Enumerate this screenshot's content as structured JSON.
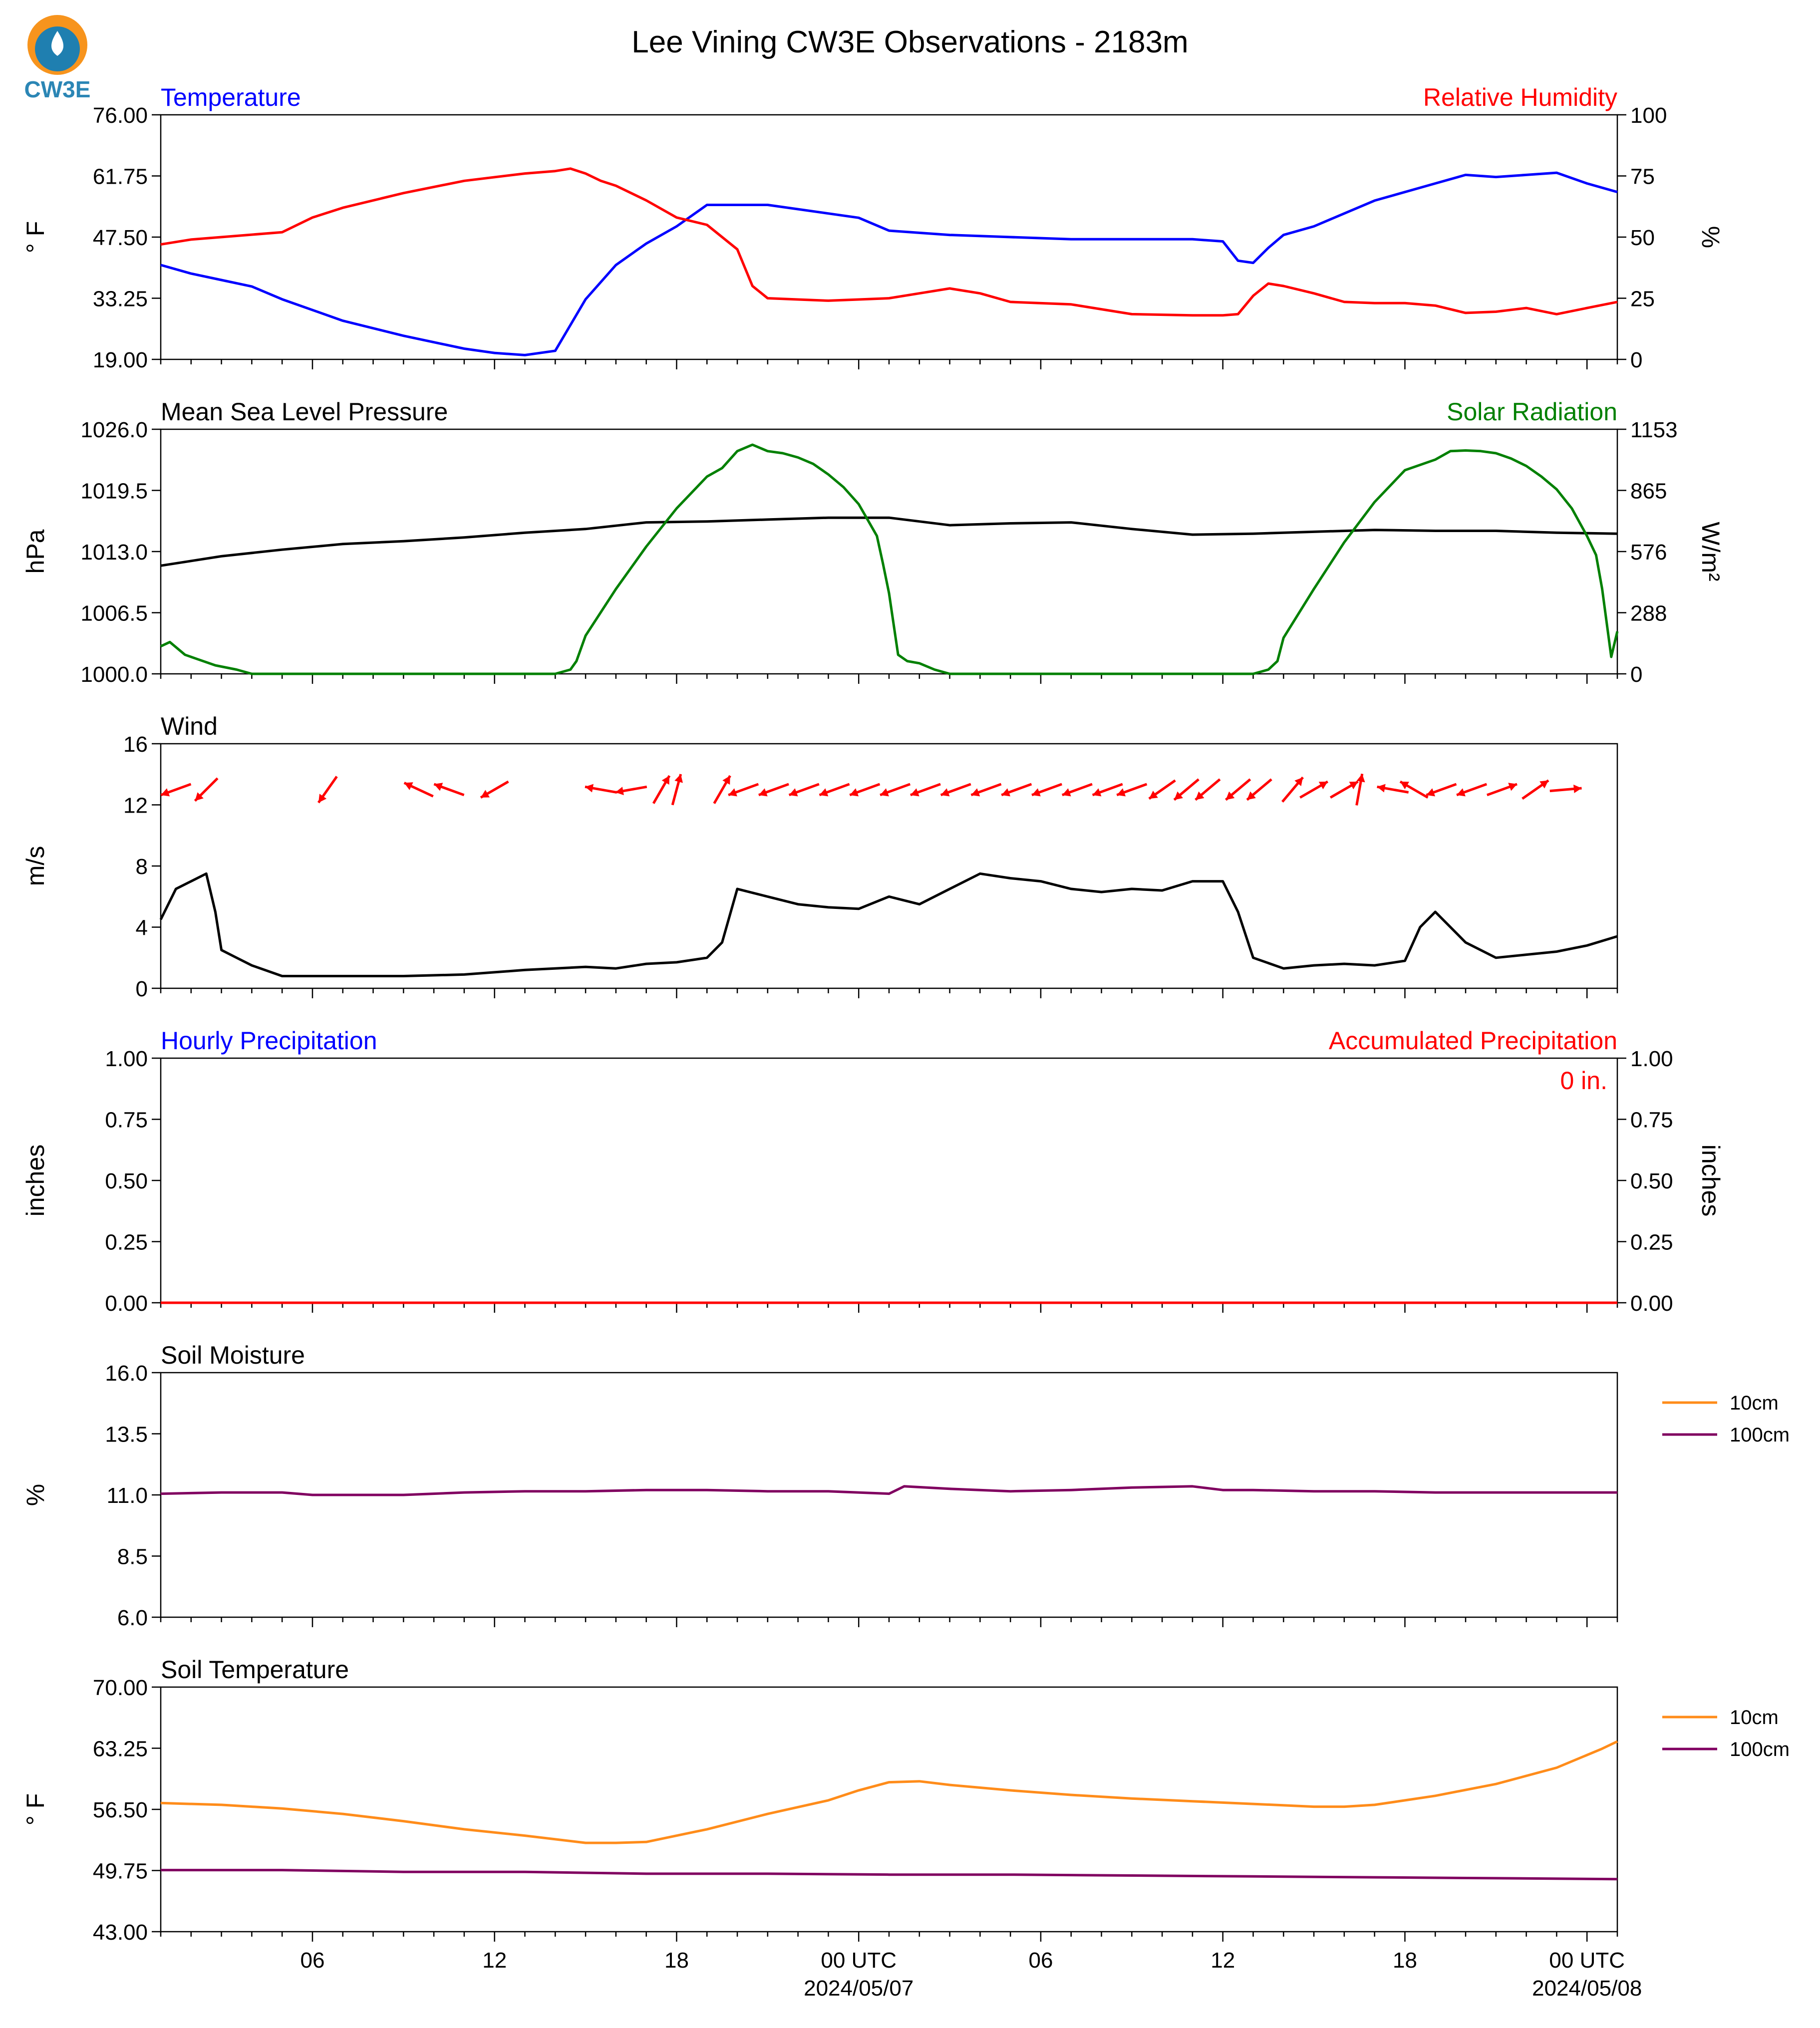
{
  "figure": {
    "title": "Lee Vining CW3E Observations - 2183m",
    "logo_text": "CW3E",
    "x_axis": {
      "hours_start": 0,
      "hours_end": 48,
      "ticks": [
        {
          "h": 5,
          "label": "06",
          "sub": ""
        },
        {
          "h": 11,
          "label": "12",
          "sub": ""
        },
        {
          "h": 17,
          "label": "18",
          "sub": ""
        },
        {
          "h": 23,
          "label": "00 UTC",
          "sub": "2024/05/07"
        },
        {
          "h": 29,
          "label": "06",
          "sub": ""
        },
        {
          "h": 35,
          "label": "12",
          "sub": ""
        },
        {
          "h": 41,
          "label": "18",
          "sub": ""
        },
        {
          "h": 47,
          "label": "00 UTC",
          "sub": "2024/05/08"
        }
      ]
    }
  },
  "panels": [
    {
      "id": "temperature",
      "left_title": "Temperature",
      "left_title_color": "#0000ff",
      "right_title": "Relative Humidity",
      "right_title_color": "#ff0000",
      "ylabel": "° F",
      "ylabel_right": "%",
      "yticks": [
        "76.00",
        "61.75",
        "47.50",
        "33.25",
        "19.00"
      ],
      "yticks_right": [
        "100",
        "75",
        "50",
        "25",
        "0"
      ]
    },
    {
      "id": "pressure",
      "left_title": "Mean Sea Level Pressure",
      "left_title_color": "#000000",
      "right_title": "Solar Radiation",
      "right_title_color": "#008000",
      "ylabel": "hPa",
      "ylabel_right": "W/m²",
      "yticks": [
        "1026.0",
        "1019.5",
        "1013.0",
        "1006.5",
        "1000.0"
      ],
      "yticks_right": [
        "1153",
        "865",
        "576",
        "288",
        "0"
      ]
    },
    {
      "id": "wind",
      "left_title": "Wind",
      "left_title_color": "#000000",
      "right_title": "",
      "right_title_color": "#000000",
      "ylabel": "m/s",
      "ylabel_right": "",
      "yticks": [
        "16",
        "12",
        "8",
        "4",
        "0"
      ],
      "yticks_right": []
    },
    {
      "id": "precip",
      "left_title": "Hourly Precipitation",
      "left_title_color": "#0000ff",
      "right_title": "Accumulated Precipitation",
      "right_title_color": "#ff0000",
      "ylabel": "inches",
      "ylabel_right": "inches",
      "yticks": [
        "1.00",
        "0.75",
        "0.50",
        "0.25",
        "0.00"
      ],
      "yticks_right": [
        "1.00",
        "0.75",
        "0.50",
        "0.25",
        "0.00"
      ],
      "annotation": "0 in."
    },
    {
      "id": "soil_moisture",
      "left_title": "Soil Moisture",
      "left_title_color": "#000000",
      "right_title": "",
      "right_title_color": "#000000",
      "ylabel": "%",
      "ylabel_right": "",
      "yticks": [
        "16.0",
        "13.5",
        "11.0",
        "8.5",
        "6.0"
      ],
      "yticks_right": [],
      "legend": [
        {
          "label": "10cm",
          "color": "#ff8c1a"
        },
        {
          "label": "100cm",
          "color": "#800060"
        }
      ]
    },
    {
      "id": "soil_temperature",
      "left_title": "Soil Temperature",
      "left_title_color": "#000000",
      "right_title": "",
      "right_title_color": "#000000",
      "ylabel": "° F",
      "ylabel_right": "",
      "yticks": [
        "70.00",
        "63.25",
        "56.50",
        "49.75",
        "43.00"
      ],
      "yticks_right": [],
      "legend": [
        {
          "label": "10cm",
          "color": "#ff8c1a"
        },
        {
          "label": "100cm",
          "color": "#800060"
        }
      ]
    }
  ],
  "chart_data": [
    {
      "type": "line",
      "panel": "temperature",
      "ylim": [
        19,
        76
      ],
      "ylim_right": [
        0,
        100
      ],
      "series": [
        {
          "name": "Temperature",
          "color": "#0000ff",
          "axis": "left",
          "x": [
            0,
            1,
            2,
            3,
            4,
            6,
            8,
            10,
            11,
            12,
            13,
            14,
            15,
            16,
            17,
            18,
            20,
            22,
            23,
            24,
            26,
            28,
            30,
            32,
            34,
            35,
            35.5,
            36,
            36.5,
            37,
            38,
            39,
            40,
            41,
            42,
            43,
            44,
            45,
            46,
            47,
            48
          ],
          "y": [
            41,
            39,
            37.5,
            36,
            33,
            28,
            24.5,
            21.5,
            20.5,
            20,
            21,
            33,
            41,
            46,
            50,
            55,
            55,
            53,
            52,
            49,
            48,
            47.5,
            47,
            47,
            47,
            46.5,
            42,
            41.5,
            45,
            48,
            50,
            53,
            56,
            58,
            60,
            62,
            61.5,
            62,
            62.5,
            60,
            58
          ]
        },
        {
          "name": "Relative Humidity",
          "color": "#ff0000",
          "axis": "right",
          "x": [
            0,
            1,
            2,
            3,
            4,
            5,
            6,
            8,
            10,
            12,
            13,
            13.5,
            14,
            14.5,
            15,
            16,
            17,
            18,
            19,
            19.5,
            20,
            21,
            22,
            23,
            24,
            25,
            26,
            27,
            28,
            30,
            32,
            34,
            35,
            35.5,
            36,
            36.5,
            37,
            38,
            39,
            40,
            41,
            42,
            43,
            44,
            45,
            46,
            47,
            48
          ],
          "y": [
            47,
            49,
            50,
            51,
            52,
            58,
            62,
            68,
            73,
            76,
            77,
            78,
            76,
            73,
            71,
            65,
            58,
            55,
            45,
            30,
            25,
            24.5,
            24,
            24.5,
            25,
            27,
            29,
            27,
            23.5,
            22.5,
            18.5,
            18,
            18,
            18.5,
            26,
            31,
            30,
            27,
            23.5,
            23,
            23,
            22,
            19,
            19.5,
            21,
            18.5,
            21,
            23.5
          ]
        }
      ]
    },
    {
      "type": "line",
      "panel": "pressure",
      "ylim": [
        1000,
        1026
      ],
      "ylim_right": [
        0,
        1153
      ],
      "series": [
        {
          "name": "Mean Sea Level Pressure",
          "color": "#000000",
          "axis": "left",
          "x": [
            0,
            2,
            4,
            6,
            8,
            10,
            12,
            14,
            16,
            18,
            20,
            22,
            24,
            26,
            28,
            30,
            32,
            34,
            36,
            38,
            40,
            42,
            44,
            46,
            48
          ],
          "y": [
            1011.5,
            1012.5,
            1013.2,
            1013.8,
            1014.1,
            1014.5,
            1015.0,
            1015.4,
            1016.1,
            1016.2,
            1016.4,
            1016.6,
            1016.6,
            1015.8,
            1016.0,
            1016.1,
            1015.4,
            1014.8,
            1014.9,
            1015.1,
            1015.3,
            1015.2,
            1015.2,
            1015.0,
            1014.9
          ]
        },
        {
          "name": "Solar Radiation",
          "color": "#008000",
          "axis": "right",
          "x": [
            0,
            0.3,
            0.8,
            1.2,
            1.8,
            2.5,
            3,
            6,
            10,
            13,
            13.5,
            13.7,
            14,
            15,
            16,
            17,
            18,
            18.5,
            19,
            19.5,
            20,
            20.5,
            21,
            21.5,
            22,
            22.5,
            23,
            23.2,
            23.6,
            23.8,
            24,
            24.3,
            24.6,
            25,
            25.5,
            26,
            28,
            32,
            36,
            36.5,
            36.8,
            37,
            38,
            39,
            40,
            41,
            42,
            42.5,
            43,
            43.5,
            44,
            44.5,
            45,
            45.5,
            46,
            46.5,
            47,
            47.3,
            47.5,
            47.8,
            48
          ],
          "y": [
            130,
            150,
            90,
            70,
            40,
            20,
            0,
            0,
            0,
            0,
            20,
            60,
            180,
            400,
            600,
            780,
            930,
            970,
            1050,
            1080,
            1050,
            1040,
            1020,
            990,
            940,
            880,
            800,
            750,
            650,
            520,
            380,
            90,
            60,
            50,
            20,
            0,
            0,
            0,
            0,
            20,
            60,
            170,
            400,
            620,
            810,
            960,
            1010,
            1050,
            1053,
            1050,
            1040,
            1015,
            980,
            930,
            870,
            780,
            650,
            560,
            400,
            80,
            200
          ]
        }
      ]
    },
    {
      "type": "line",
      "panel": "wind",
      "ylim": [
        0,
        16
      ],
      "series": [
        {
          "name": "Wind speed",
          "color": "#000000",
          "axis": "left",
          "x": [
            0,
            0.5,
            1,
            1.5,
            1.8,
            2,
            2.5,
            3,
            4,
            6,
            8,
            10,
            12,
            14,
            15,
            16,
            17,
            18,
            18.5,
            19,
            20,
            21,
            22,
            23,
            24,
            25,
            26,
            27,
            28,
            29,
            30,
            31,
            32,
            33,
            34,
            35,
            35.5,
            36,
            37,
            38,
            39,
            40,
            41,
            41.5,
            42,
            43,
            44,
            45,
            46,
            47,
            48
          ],
          "y": [
            4.5,
            6.5,
            7,
            7.5,
            5,
            2.5,
            2,
            1.5,
            0.8,
            0.8,
            0.8,
            0.9,
            1.2,
            1.4,
            1.3,
            1.6,
            1.7,
            2,
            3,
            6.5,
            6,
            5.5,
            5.3,
            5.2,
            6,
            5.5,
            6.5,
            7.5,
            7.2,
            7,
            6.5,
            6.3,
            6.5,
            6.4,
            7,
            7,
            5,
            2,
            1.3,
            1.5,
            1.6,
            1.5,
            1.8,
            4,
            5,
            3,
            2,
            2.2,
            2.4,
            2.8,
            3.4
          ]
        },
        {
          "name": "Wind direction",
          "color": "#ff0000",
          "axis": "left",
          "type": "arrows",
          "arrow_y": 13,
          "x": [
            0.5,
            1.5,
            5.5,
            8.5,
            9.5,
            11,
            14.5,
            15.5,
            16.5,
            17,
            18.5,
            19.2,
            20.2,
            21.2,
            22.2,
            23.2,
            24.2,
            25.2,
            26.2,
            27.2,
            28.2,
            29.2,
            30.2,
            31.2,
            32,
            33,
            33.8,
            34.5,
            35.5,
            36.2,
            37.3,
            38,
            39,
            39.5,
            40.6,
            41.3,
            42.2,
            43.2,
            44.2,
            45.3,
            46.3
          ],
          "angle_deg": [
            200,
            225,
            235,
            155,
            160,
            210,
            170,
            190,
            60,
            75,
            60,
            200,
            200,
            200,
            200,
            200,
            200,
            200,
            200,
            200,
            200,
            200,
            200,
            200,
            200,
            215,
            220,
            220,
            220,
            220,
            50,
            30,
            30,
            80,
            170,
            150,
            200,
            200,
            20,
            35,
            5
          ]
        }
      ]
    },
    {
      "type": "line",
      "panel": "precip",
      "ylim": [
        0,
        1
      ],
      "ylim_right": [
        0,
        1
      ],
      "series": [
        {
          "name": "Hourly Precipitation",
          "color": "#0000ff",
          "axis": "left",
          "x": [
            0,
            48
          ],
          "y": [
            0,
            0
          ]
        },
        {
          "name": "Accumulated Precipitation",
          "color": "#ff0000",
          "axis": "right",
          "x": [
            0,
            48
          ],
          "y": [
            0,
            0
          ]
        }
      ]
    },
    {
      "type": "line",
      "panel": "soil_moisture",
      "ylim": [
        6,
        16
      ],
      "series": [
        {
          "name": "10cm",
          "color": "#ff8c1a",
          "axis": "left",
          "x": [],
          "y": []
        },
        {
          "name": "100cm",
          "color": "#800060",
          "axis": "left",
          "x": [
            0,
            2,
            4,
            5,
            8,
            10,
            12,
            14,
            16,
            18,
            20,
            22,
            24,
            24.5,
            26,
            28,
            30,
            32,
            34,
            35,
            36,
            38,
            40,
            42,
            44,
            46,
            48
          ],
          "y": [
            11.05,
            11.1,
            11.1,
            11.0,
            11.0,
            11.1,
            11.15,
            11.15,
            11.2,
            11.2,
            11.15,
            11.15,
            11.05,
            11.35,
            11.25,
            11.15,
            11.2,
            11.3,
            11.35,
            11.2,
            11.2,
            11.15,
            11.15,
            11.1,
            11.1,
            11.1,
            11.1
          ]
        }
      ]
    },
    {
      "type": "line",
      "panel": "soil_temperature",
      "ylim": [
        43,
        70
      ],
      "series": [
        {
          "name": "10cm",
          "color": "#ff8c1a",
          "axis": "left",
          "x": [
            0,
            2,
            4,
            6,
            8,
            10,
            12,
            14,
            15,
            16,
            18,
            20,
            22,
            23,
            24,
            25,
            26,
            28,
            30,
            32,
            34,
            36,
            38,
            39,
            40,
            41,
            42,
            44,
            46,
            47.5,
            48
          ],
          "y": [
            57.2,
            57,
            56.6,
            56,
            55.2,
            54.3,
            53.6,
            52.8,
            52.8,
            52.9,
            54.3,
            56,
            57.5,
            58.6,
            59.5,
            59.6,
            59.2,
            58.6,
            58.1,
            57.7,
            57.4,
            57.1,
            56.8,
            56.8,
            57,
            57.5,
            58,
            59.3,
            61.1,
            63.2,
            64
          ]
        },
        {
          "name": "100cm",
          "color": "#800060",
          "axis": "left",
          "x": [
            0,
            4,
            8,
            12,
            16,
            20,
            24,
            28,
            32,
            36,
            40,
            44,
            48
          ],
          "y": [
            49.8,
            49.8,
            49.6,
            49.6,
            49.4,
            49.4,
            49.3,
            49.3,
            49.2,
            49.1,
            49.0,
            48.9,
            48.8
          ]
        }
      ]
    }
  ]
}
